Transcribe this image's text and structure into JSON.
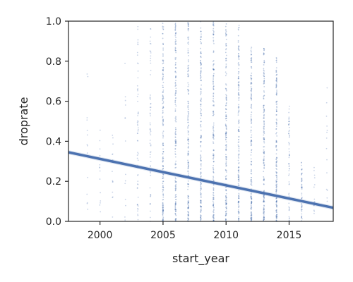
{
  "chart_data": {
    "type": "scatter",
    "title": "",
    "xlabel": "start_year",
    "ylabel": "droprate",
    "xlim": [
      1997.5,
      2018.5
    ],
    "ylim": [
      0,
      1
    ],
    "x_ticks": [
      2000,
      2005,
      2010,
      2015
    ],
    "y_ticks": [
      0.0,
      0.2,
      0.4,
      0.6,
      0.8,
      1.0
    ],
    "x_tick_labels": [
      "2000",
      "2005",
      "2010",
      "2015"
    ],
    "y_tick_labels": [
      "0.0",
      "0.2",
      "0.4",
      "0.6",
      "0.8",
      "1.0"
    ],
    "grid": false,
    "point_color": "#4c72b0",
    "line_color": "#4c72b0",
    "regression_line": {
      "x": [
        1997.5,
        2018.5
      ],
      "y": [
        0.345,
        0.068
      ]
    },
    "points_by_year": [
      {
        "year": 1999,
        "density": "low",
        "max": 0.77
      },
      {
        "year": 2000,
        "density": "low",
        "max": 0.6
      },
      {
        "year": 2001,
        "density": "low",
        "max": 0.45
      },
      {
        "year": 2002,
        "density": "low",
        "max": 0.88
      },
      {
        "year": 2003,
        "density": "medium",
        "max": 1.0
      },
      {
        "year": 2004,
        "density": "medium",
        "max": 1.0
      },
      {
        "year": 2005,
        "density": "high",
        "max": 1.0
      },
      {
        "year": 2006,
        "density": "high",
        "max": 1.0
      },
      {
        "year": 2007,
        "density": "high",
        "max": 1.0
      },
      {
        "year": 2008,
        "density": "high",
        "max": 1.0
      },
      {
        "year": 2009,
        "density": "high",
        "max": 1.0
      },
      {
        "year": 2010,
        "density": "high",
        "max": 1.0
      },
      {
        "year": 2011,
        "density": "high",
        "max": 1.0
      },
      {
        "year": 2012,
        "density": "high",
        "max": 0.87
      },
      {
        "year": 2013,
        "density": "high",
        "max": 0.87
      },
      {
        "year": 2014,
        "density": "high",
        "max": 0.82
      },
      {
        "year": 2015,
        "density": "medium",
        "max": 0.58
      },
      {
        "year": 2016,
        "density": "medium",
        "max": 0.3
      },
      {
        "year": 2017,
        "density": "low",
        "max": 0.28
      },
      {
        "year": 2018,
        "density": "low",
        "max": 0.8
      }
    ]
  }
}
